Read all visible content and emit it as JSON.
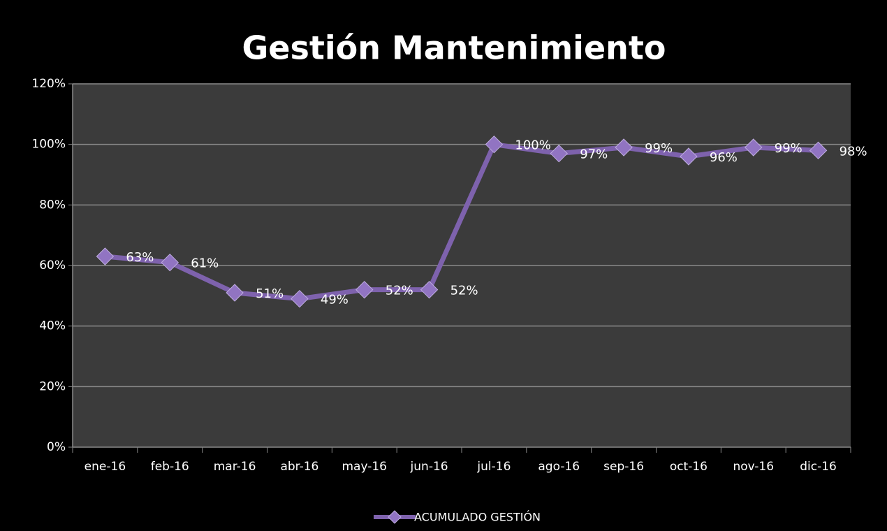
{
  "chart_data": {
    "type": "line",
    "title": "Gestión Mantenimiento",
    "categories": [
      "ene-16",
      "feb-16",
      "mar-16",
      "abr-16",
      "may-16",
      "jun-16",
      "jul-16",
      "ago-16",
      "sep-16",
      "oct-16",
      "nov-16",
      "dic-16"
    ],
    "series": [
      {
        "name": "ACUMULADO GESTIÓN",
        "color": "#7e62ad",
        "values": [
          63,
          61,
          51,
          49,
          52,
          52,
          100,
          97,
          99,
          96,
          99,
          98
        ],
        "value_labels": [
          "63%",
          "61%",
          "51%",
          "49%",
          "52%",
          "52%",
          "100%",
          "97%",
          "99%",
          "96%",
          "99%",
          "98%"
        ]
      }
    ],
    "ylim": [
      0,
      120
    ],
    "yticks": [
      {
        "value": 0,
        "label": "0%"
      },
      {
        "value": 20,
        "label": "20%"
      },
      {
        "value": 40,
        "label": "40%"
      },
      {
        "value": 60,
        "label": "60%"
      },
      {
        "value": 80,
        "label": "80%"
      },
      {
        "value": 100,
        "label": "100%"
      },
      {
        "value": 120,
        "label": "120%"
      }
    ],
    "grid": true,
    "legend": "bottom"
  }
}
